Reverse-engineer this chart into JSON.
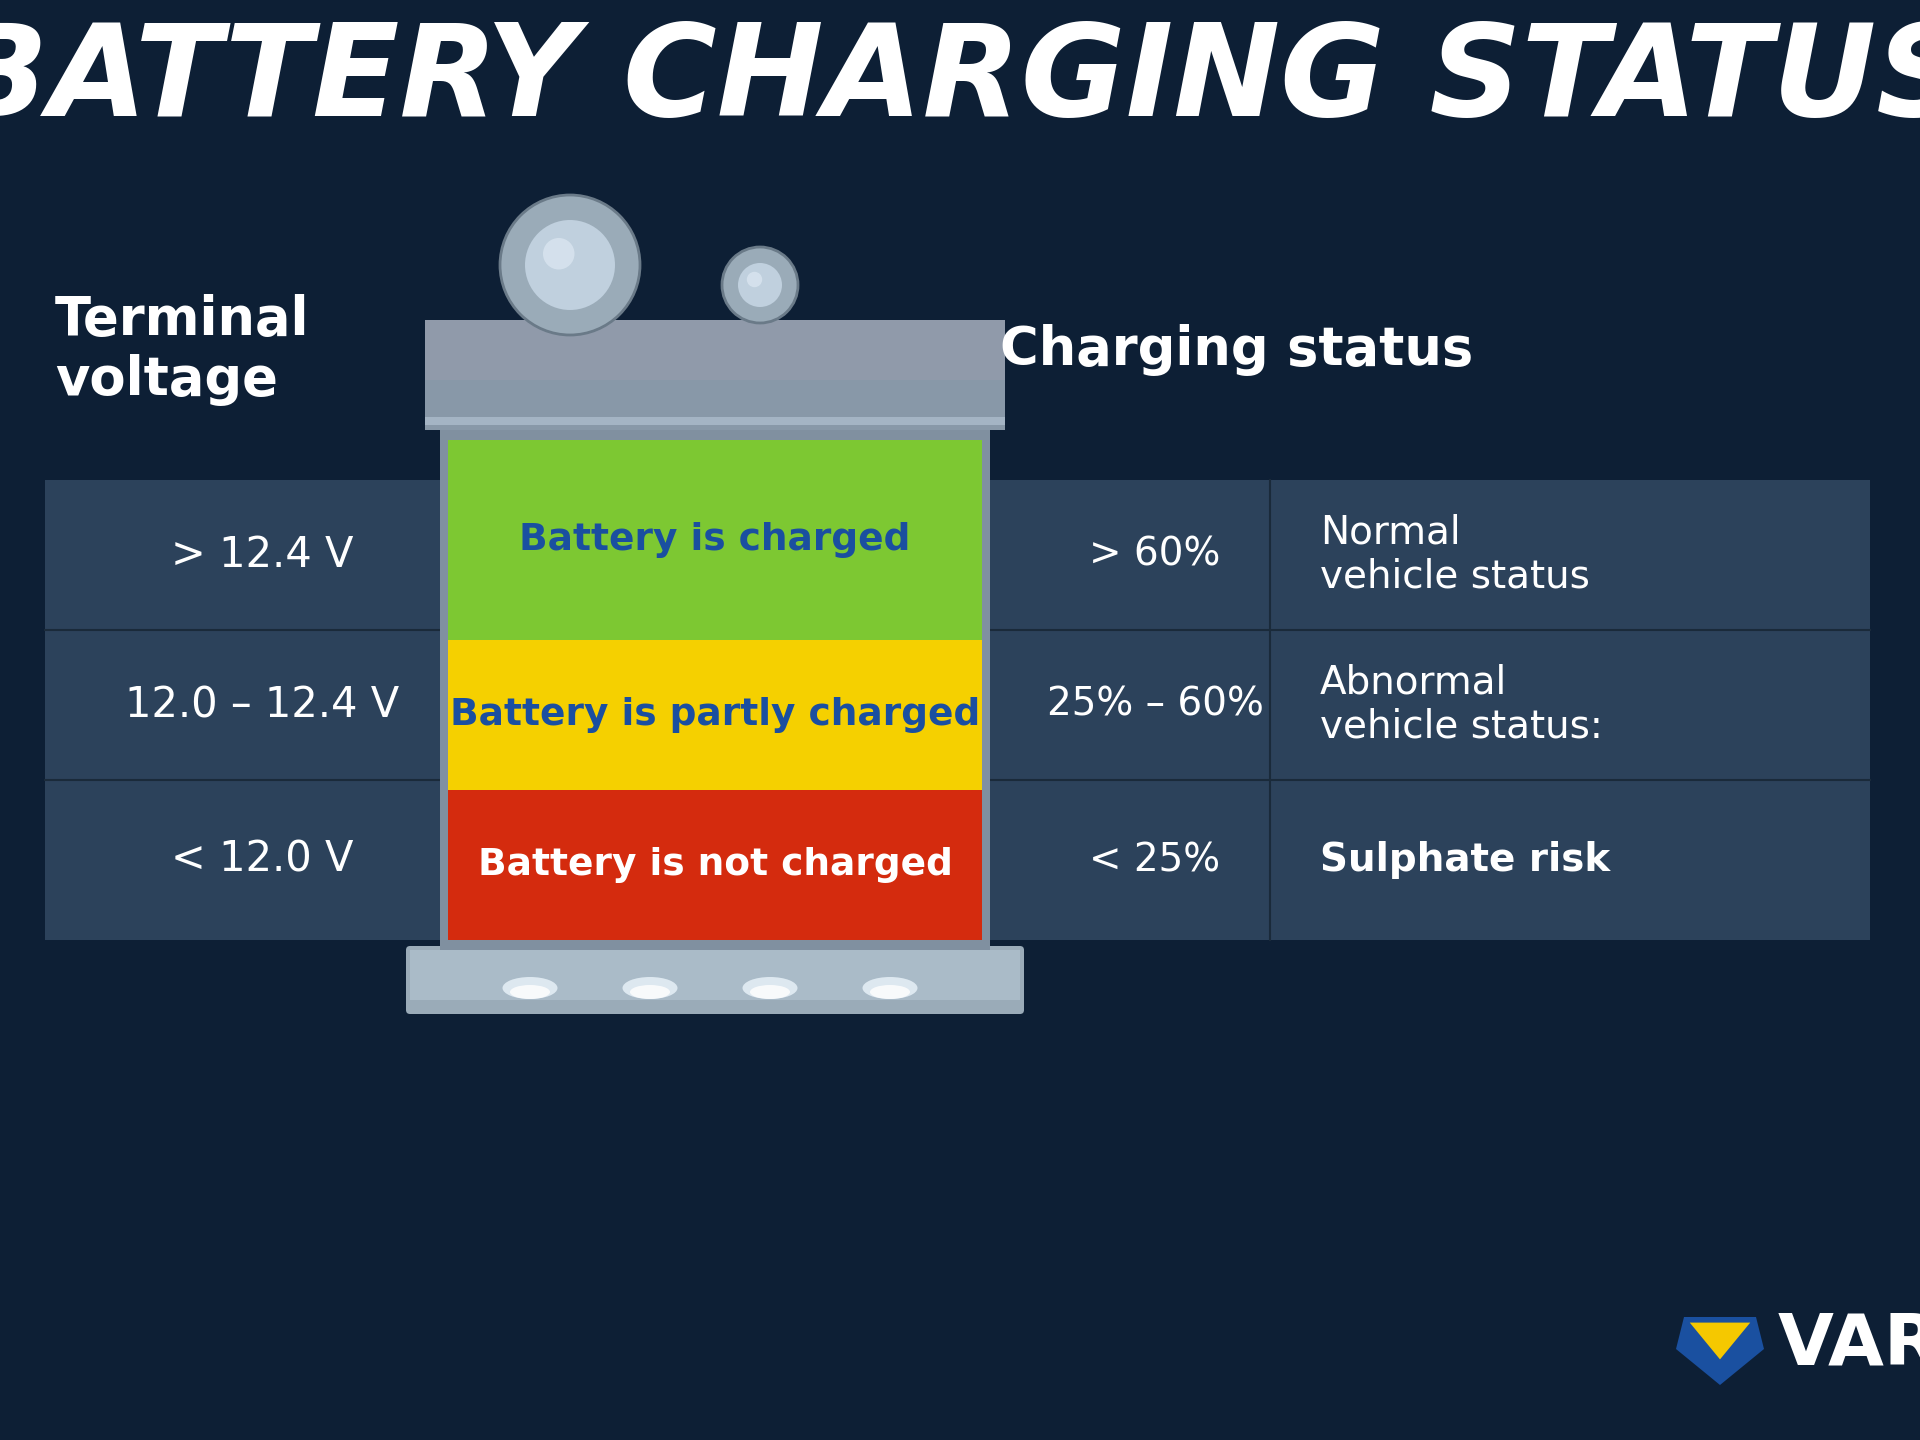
{
  "title": "BATTERY CHARGING STATUS",
  "title_color": "#ffffff",
  "background_color": "#0d1f35",
  "terminal_voltage_label": "Terminal\nvoltage",
  "charging_status_label": "Charging status",
  "voltage_rows": [
    {
      "voltage": "> 12.4 V",
      "status": "Battery is charged",
      "color": "#7dc832",
      "text_color": "#1a4fa0"
    },
    {
      "voltage": "12.0 – 12.4 V",
      "status": "Battery is partly charged",
      "color": "#f5d000",
      "text_color": "#1a4fa0"
    },
    {
      "voltage": "< 12.0 V",
      "status": "Battery is not charged",
      "color": "#d42b0e",
      "text_color": "#ffffff"
    }
  ],
  "charge_rows": [
    {
      "percent": "> 60%",
      "desc1": "Normal",
      "desc2": "vehicle status",
      "bold2": false
    },
    {
      "percent": "25% – 60%",
      "desc1": "Abnormal",
      "desc2": "vehicle status:",
      "bold2": false
    },
    {
      "percent": "< 25%",
      "desc1": "",
      "desc2": "Sulphate risk",
      "bold2": true
    }
  ],
  "varta_text": "VARTA",
  "varta_color": "#ffffff"
}
